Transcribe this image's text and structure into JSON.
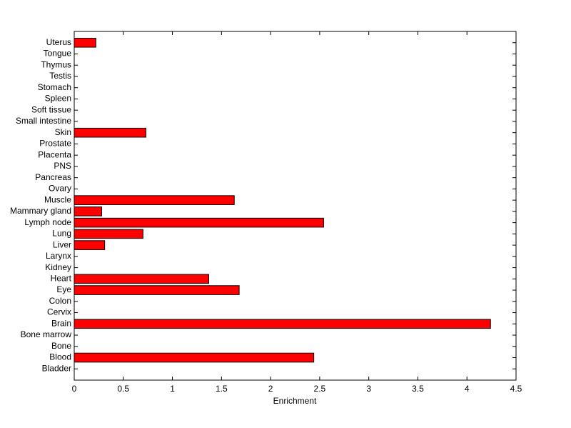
{
  "chart_data": {
    "type": "barh",
    "xlabel": "Enrichment",
    "categories": [
      "Bladder",
      "Blood",
      "Bone",
      "Bone marrow",
      "Brain",
      "Cervix",
      "Colon",
      "Eye",
      "Heart",
      "Kidney",
      "Larynx",
      "Liver",
      "Lung",
      "Lymph node",
      "Mammary gland",
      "Muscle",
      "Ovary",
      "Pancreas",
      "PNS",
      "Placenta",
      "Prostate",
      "Skin",
      "Small intestine",
      "Soft tissue",
      "Spleen",
      "Stomach",
      "Testis",
      "Thymus",
      "Tongue",
      "Uterus"
    ],
    "values": [
      0,
      2.44,
      0,
      0,
      4.24,
      0,
      0,
      1.68,
      1.37,
      0,
      0,
      0.31,
      0.7,
      2.54,
      0.28,
      1.63,
      0,
      0,
      0,
      0,
      0,
      0.73,
      0,
      0,
      0,
      0,
      0,
      0,
      0,
      0.22
    ],
    "color": "#ff0000",
    "xlim": [
      0,
      4.5
    ],
    "xticks": [
      0,
      0.5,
      1,
      1.5,
      2,
      2.5,
      3,
      3.5,
      4,
      4.5
    ],
    "grid": false
  }
}
